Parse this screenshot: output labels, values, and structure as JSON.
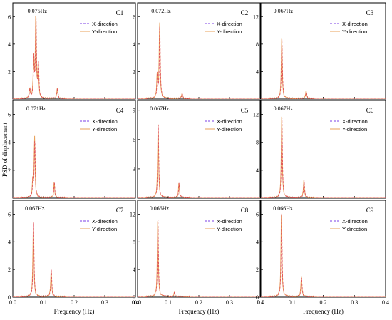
{
  "figure": {
    "ylabel": "PSD of displacement",
    "xlabel": "Frequency (Hz)",
    "legend": [
      "X-direction",
      "Y-direction"
    ],
    "colors": {
      "x": "#7b3fe4",
      "y": "#e8a15a",
      "overlay": "#e0505a"
    }
  },
  "chart_data": [
    {
      "type": "line",
      "title": "C1",
      "peak_label": "0.075Hz",
      "xlim": [
        0,
        0.4
      ],
      "ylim": [
        0,
        7
      ],
      "xticks": [
        0.0,
        0.1,
        0.2,
        0.3,
        0.4
      ],
      "yticks": [
        2,
        4,
        6
      ],
      "legend_pos": "top-right",
      "peaks": [
        {
          "f": 0.055,
          "a": 0.7
        },
        {
          "f": 0.068,
          "a": 3.0
        },
        {
          "f": 0.075,
          "a": 6.2
        },
        {
          "f": 0.083,
          "a": 2.5
        },
        {
          "f": 0.145,
          "a": 0.8
        }
      ]
    },
    {
      "type": "line",
      "title": "C2",
      "peak_label": "0.072Hz",
      "xlim": [
        0,
        0.4
      ],
      "ylim": [
        0,
        7
      ],
      "xticks": [
        0.0,
        0.1,
        0.2,
        0.3,
        0.4
      ],
      "yticks": [
        2,
        4,
        6
      ],
      "legend_pos": "top-right",
      "peaks": [
        {
          "f": 0.064,
          "a": 1.7
        },
        {
          "f": 0.072,
          "a": 5.5
        },
        {
          "f": 0.145,
          "a": 0.4
        }
      ]
    },
    {
      "type": "line",
      "title": "C3",
      "peak_label": "0.067Hz",
      "xlim": [
        0,
        0.4
      ],
      "ylim": [
        0,
        14
      ],
      "xticks": [
        0.0,
        0.1,
        0.2,
        0.3,
        0.4
      ],
      "yticks": [
        4,
        8,
        12
      ],
      "legend_pos": "top-right",
      "peaks": [
        {
          "f": 0.067,
          "a": 9.0
        },
        {
          "f": 0.145,
          "a": 1.2
        }
      ]
    },
    {
      "type": "line",
      "title": "C4",
      "peak_label": "0.071Hz",
      "xlim": [
        0,
        0.4
      ],
      "ylim": [
        0,
        7
      ],
      "xticks": [
        0.0,
        0.1,
        0.2,
        0.3,
        0.4
      ],
      "yticks": [
        2,
        4,
        6
      ],
      "legend_pos": "top-right",
      "peaks": [
        {
          "f": 0.065,
          "a": 1.2
        },
        {
          "f": 0.071,
          "a": 4.3
        },
        {
          "f": 0.135,
          "a": 1.1
        }
      ]
    },
    {
      "type": "line",
      "title": "C5",
      "peak_label": "0.067Hz",
      "xlim": [
        0,
        0.4
      ],
      "ylim": [
        0,
        10
      ],
      "xticks": [
        0.0,
        0.1,
        0.2,
        0.3,
        0.4
      ],
      "yticks": [
        3,
        6,
        9
      ],
      "legend_pos": "top-right",
      "peaks": [
        {
          "f": 0.067,
          "a": 7.8
        },
        {
          "f": 0.135,
          "a": 1.5
        }
      ]
    },
    {
      "type": "line",
      "title": "C6",
      "peak_label": "0.067Hz",
      "xlim": [
        0,
        0.4
      ],
      "ylim": [
        0,
        14
      ],
      "xticks": [
        0.0,
        0.1,
        0.2,
        0.3,
        0.4
      ],
      "yticks": [
        4,
        8,
        12
      ],
      "legend_pos": "top-right",
      "peaks": [
        {
          "f": 0.067,
          "a": 12.0
        },
        {
          "f": 0.138,
          "a": 2.6
        }
      ]
    },
    {
      "type": "line",
      "title": "C7",
      "peak_label": "0.067Hz",
      "xlim": [
        0,
        0.4
      ],
      "ylim": [
        0,
        7
      ],
      "xticks": [
        0.0,
        0.1,
        0.2,
        0.3,
        0.4
      ],
      "yticks": [
        0,
        2,
        4,
        6
      ],
      "legend_pos": "top-right",
      "peaks": [
        {
          "f": 0.067,
          "a": 5.6
        },
        {
          "f": 0.125,
          "a": 2.0
        }
      ]
    },
    {
      "type": "line",
      "title": "C8",
      "peak_label": "0.066Hz",
      "xlim": [
        0,
        0.4
      ],
      "ylim": [
        0,
        14
      ],
      "xticks": [
        0.0,
        0.1,
        0.2,
        0.3,
        0.4
      ],
      "yticks": [
        0,
        4,
        8,
        12
      ],
      "legend_pos": "top-right",
      "peaks": [
        {
          "f": 0.066,
          "a": 11.5
        },
        {
          "f": 0.12,
          "a": 0.6
        }
      ]
    },
    {
      "type": "line",
      "title": "C9",
      "peak_label": "0.066Hz",
      "xlim": [
        0,
        0.4
      ],
      "ylim": [
        0,
        7
      ],
      "xticks": [
        0.0,
        0.1,
        0.2,
        0.3,
        0.4
      ],
      "yticks": [
        0,
        2,
        4,
        6
      ],
      "legend_pos": "top-right",
      "peaks": [
        {
          "f": 0.066,
          "a": 6.2
        },
        {
          "f": 0.13,
          "a": 1.5
        }
      ]
    }
  ]
}
